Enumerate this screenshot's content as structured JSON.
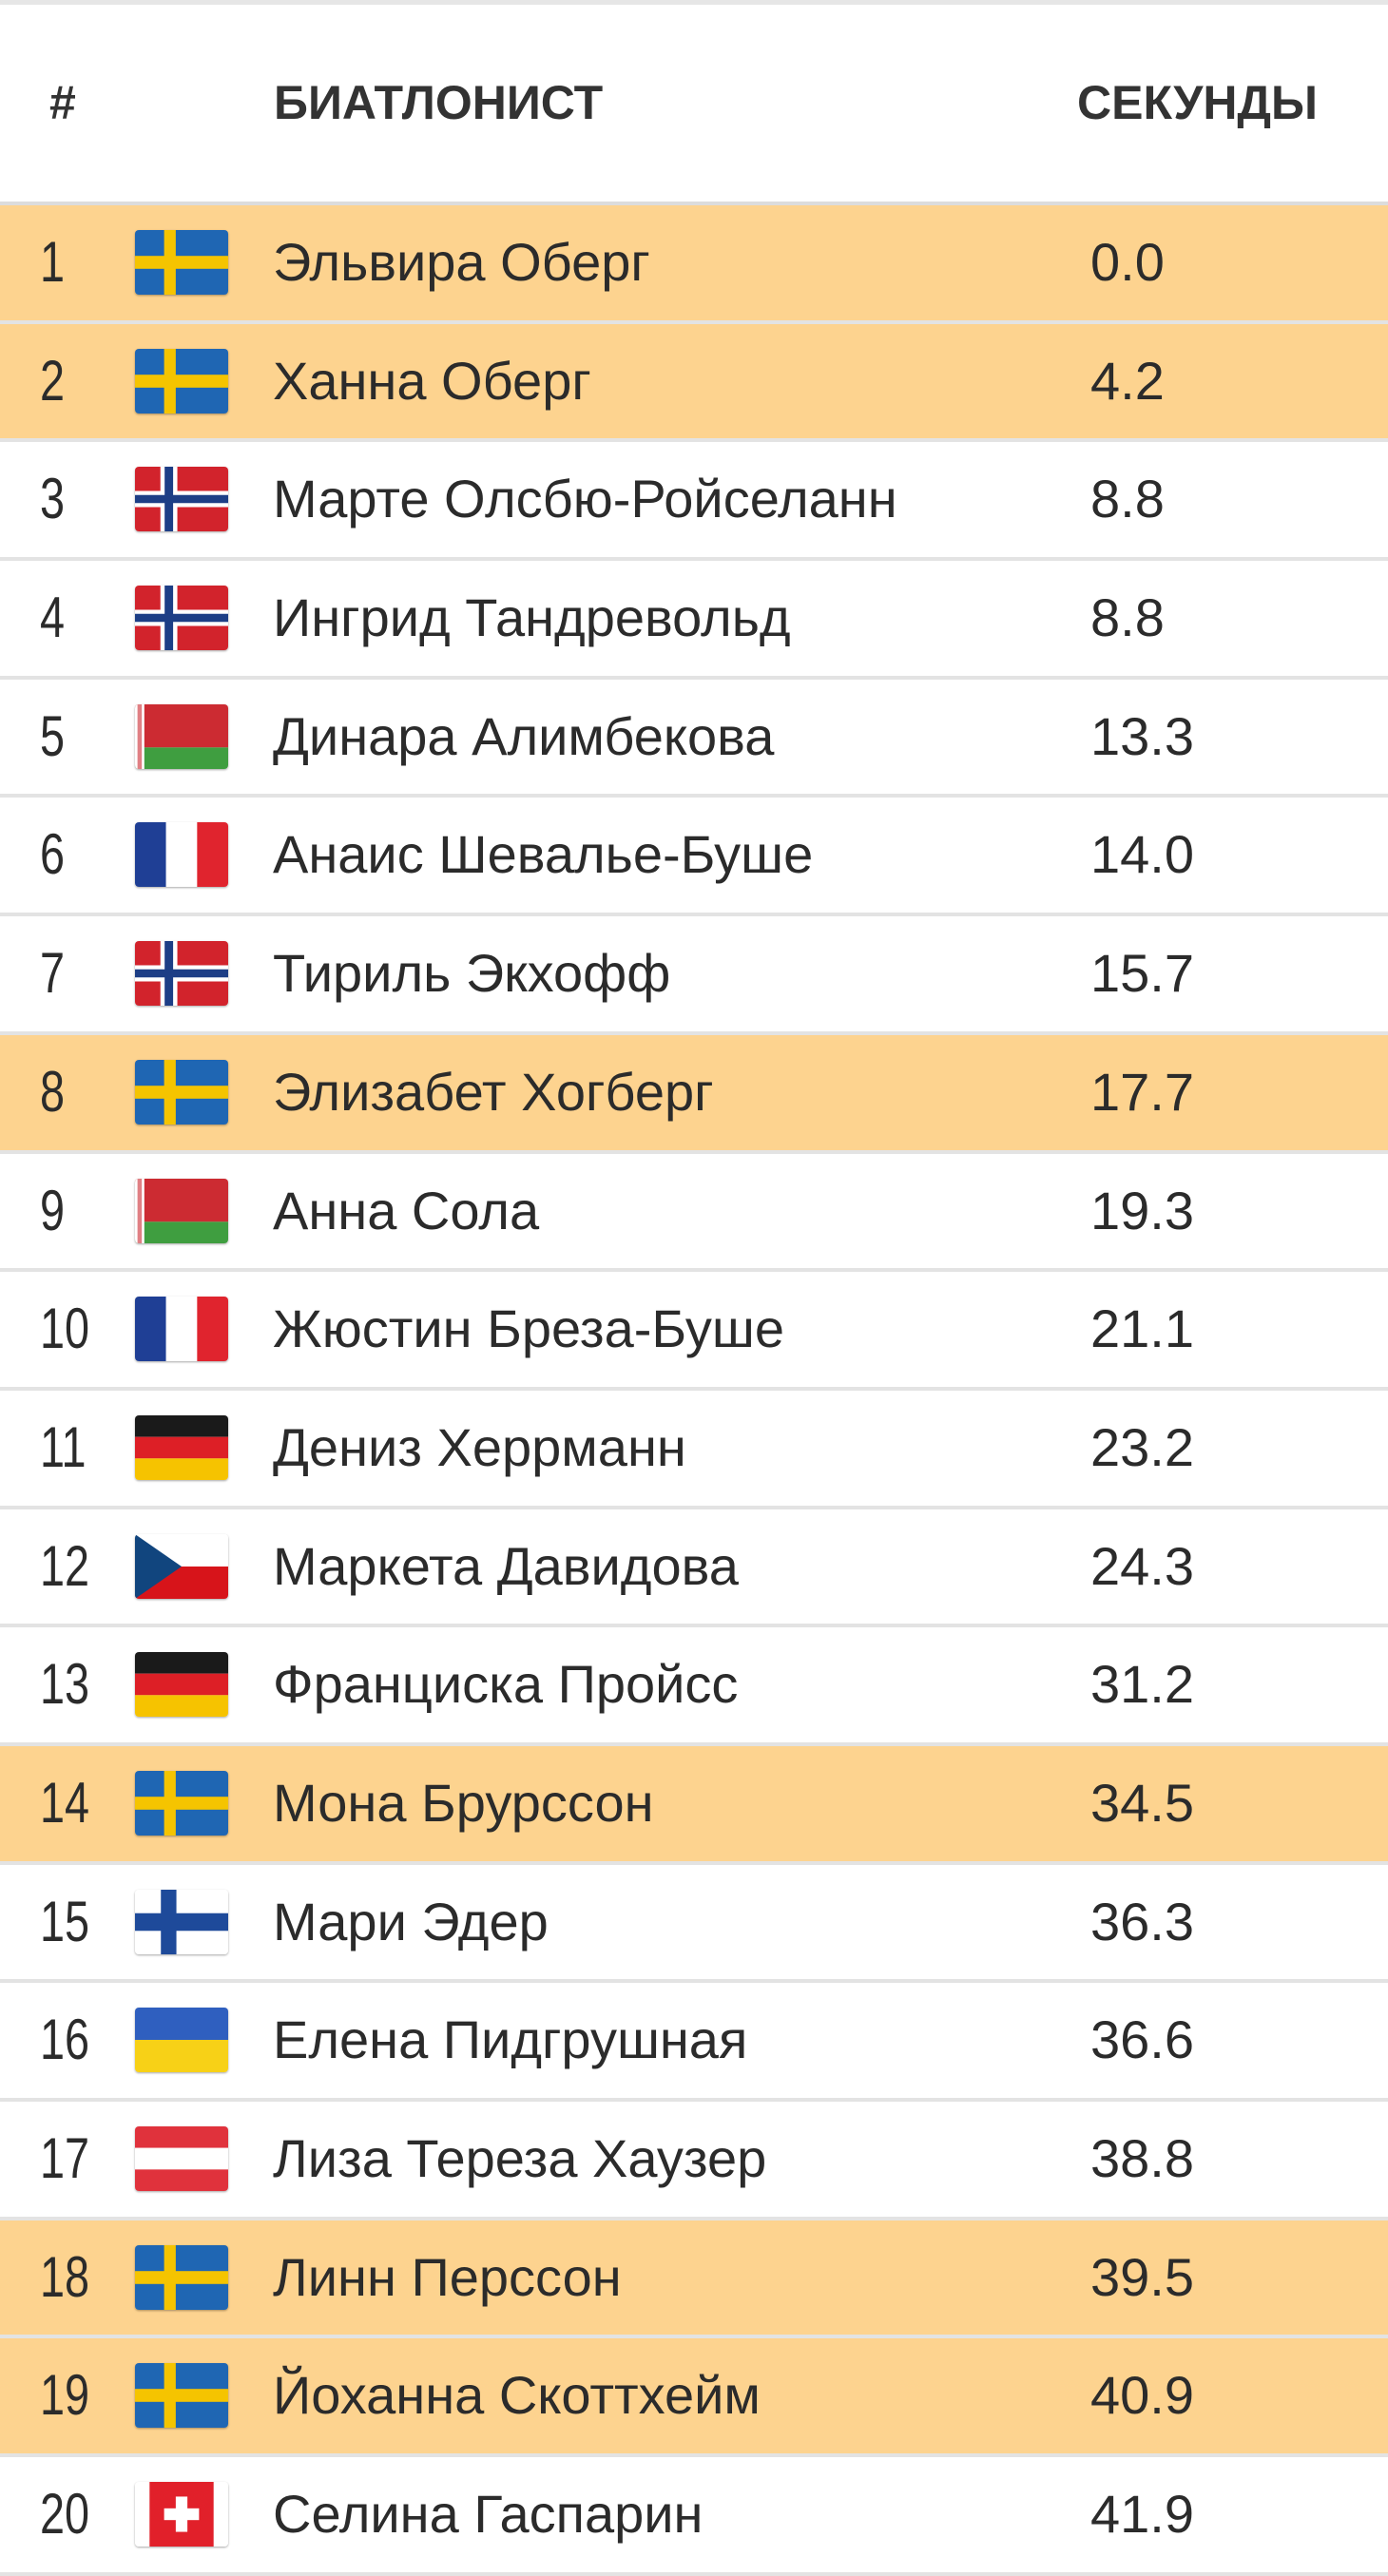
{
  "header": {
    "rank": "#",
    "name": "БИАТЛОНИСТ",
    "seconds": "СЕКУНДЫ"
  },
  "colors": {
    "highlight": "#fdd38f",
    "divider": "#e3e3e3"
  },
  "rows": [
    {
      "rank": "1",
      "flag": "sweden-flag-icon",
      "name": "Эльвира Оберг",
      "seconds": "0.0",
      "highlight": true
    },
    {
      "rank": "2",
      "flag": "sweden-flag-icon",
      "name": "Ханна Оберг",
      "seconds": "4.2",
      "highlight": true
    },
    {
      "rank": "3",
      "flag": "norway-flag-icon",
      "name": "Марте Олсбю-Ройселанн",
      "seconds": "8.8",
      "highlight": false
    },
    {
      "rank": "4",
      "flag": "norway-flag-icon",
      "name": "Ингрид Тандревольд",
      "seconds": "8.8",
      "highlight": false
    },
    {
      "rank": "5",
      "flag": "belarus-flag-icon",
      "name": "Динара Алимбекова",
      "seconds": "13.3",
      "highlight": false
    },
    {
      "rank": "6",
      "flag": "france-flag-icon",
      "name": "Анаис Шевалье-Буше",
      "seconds": "14.0",
      "highlight": false
    },
    {
      "rank": "7",
      "flag": "norway-flag-icon",
      "name": "Тириль Экхофф",
      "seconds": "15.7",
      "highlight": false
    },
    {
      "rank": "8",
      "flag": "sweden-flag-icon",
      "name": "Элизабет Хогберг",
      "seconds": "17.7",
      "highlight": true
    },
    {
      "rank": "9",
      "flag": "belarus-flag-icon",
      "name": "Анна Сола",
      "seconds": "19.3",
      "highlight": false
    },
    {
      "rank": "10",
      "flag": "france-flag-icon",
      "name": "Жюстин Бреза-Буше",
      "seconds": "21.1",
      "highlight": false
    },
    {
      "rank": "11",
      "flag": "germany-flag-icon",
      "name": "Дениз Херрманн",
      "seconds": "23.2",
      "highlight": false
    },
    {
      "rank": "12",
      "flag": "czech-flag-icon",
      "name": "Маркета Давидова",
      "seconds": "24.3",
      "highlight": false
    },
    {
      "rank": "13",
      "flag": "germany-flag-icon",
      "name": "Франциска Пройсс",
      "seconds": "31.2",
      "highlight": false
    },
    {
      "rank": "14",
      "flag": "sweden-flag-icon",
      "name": "Мона Брурссон",
      "seconds": "34.5",
      "highlight": true
    },
    {
      "rank": "15",
      "flag": "finland-flag-icon",
      "name": "Мари Эдер",
      "seconds": "36.3",
      "highlight": false
    },
    {
      "rank": "16",
      "flag": "ukraine-flag-icon",
      "name": "Елена Пидгрушная",
      "seconds": "36.6",
      "highlight": false
    },
    {
      "rank": "17",
      "flag": "austria-flag-icon",
      "name": "Лиза Тереза Хаузер",
      "seconds": "38.8",
      "highlight": false
    },
    {
      "rank": "18",
      "flag": "sweden-flag-icon",
      "name": "Линн Перссон",
      "seconds": "39.5",
      "highlight": true
    },
    {
      "rank": "19",
      "flag": "sweden-flag-icon",
      "name": "Йоханна Скоттхейм",
      "seconds": "40.9",
      "highlight": true
    },
    {
      "rank": "20",
      "flag": "switzerland-flag-icon",
      "name": "Селина Гаспарин",
      "seconds": "41.9",
      "highlight": false
    }
  ]
}
